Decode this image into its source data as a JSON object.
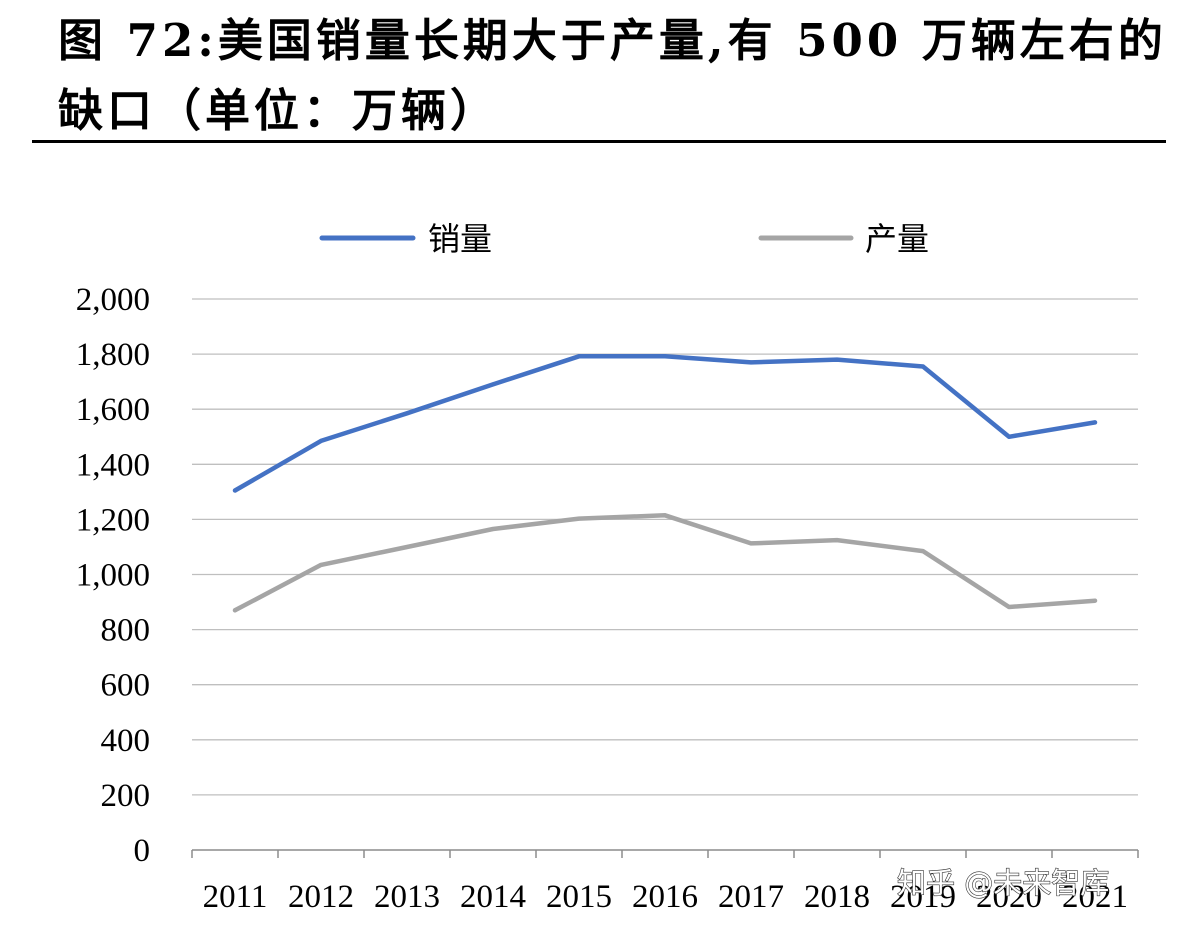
{
  "title": {
    "line1": "图 72:美国销量长期大于产量,有 500 万辆左右的",
    "line2": "缺口（单位：万辆）"
  },
  "watermark": "知乎 @未来智库",
  "chart_data": {
    "type": "line",
    "x": [
      "2011",
      "2012",
      "2013",
      "2014",
      "2015",
      "2016",
      "2017",
      "2018",
      "2019",
      "2020",
      "2021"
    ],
    "series": [
      {
        "name": "销量",
        "color": "#4472C4",
        "values": [
          1305,
          1485,
          1585,
          1690,
          1792,
          1792,
          1770,
          1780,
          1755,
          1500,
          1552
        ]
      },
      {
        "name": "产量",
        "color": "#A5A5A5",
        "values": [
          870,
          1035,
          1100,
          1165,
          1203,
          1215,
          1113,
          1125,
          1085,
          882,
          905
        ]
      }
    ],
    "ylim": [
      0,
      2000
    ],
    "yticks": [
      0,
      200,
      400,
      600,
      800,
      1000,
      1200,
      1400,
      1600,
      1800,
      2000
    ],
    "ytick_labels": [
      "0",
      "200",
      "400",
      "600",
      "800",
      "1,000",
      "1,200",
      "1,400",
      "1,600",
      "1,800",
      "2,000"
    ],
    "grid": "horizontal",
    "legend": "top"
  }
}
